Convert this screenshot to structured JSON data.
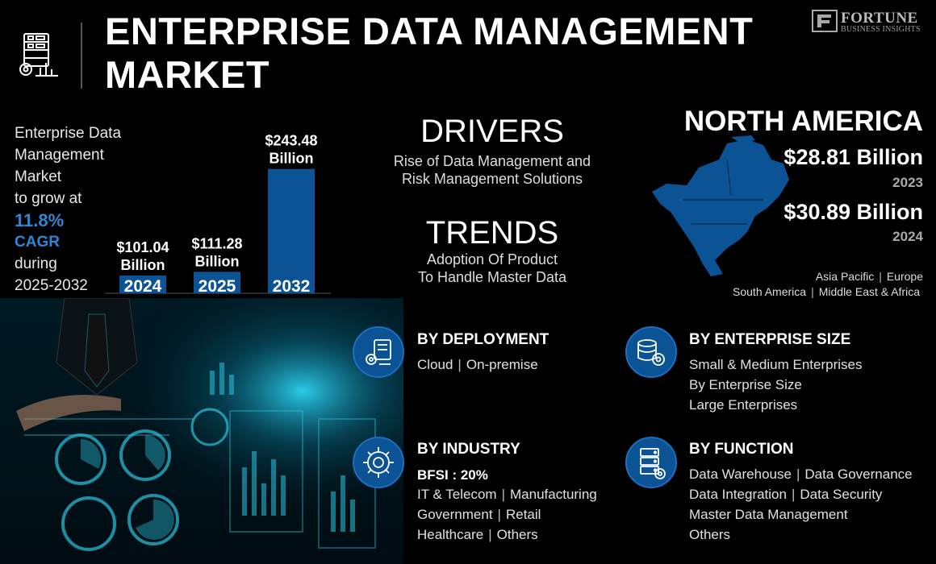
{
  "header": {
    "title": "ENTERPRISE DATA MANAGEMENT MARKET",
    "logo_word": "FORTUNE",
    "logo_sub": "BUSINESS INSIGHTS",
    "icon": "data-server-gear-icon"
  },
  "intro": {
    "line1": "Enterprise Data",
    "line2": "Management",
    "line3": "Market",
    "line4": "to grow at",
    "cagr_value": "11.8%",
    "cagr_label": "CAGR",
    "line5": "during",
    "period": "2025-2032"
  },
  "chart_data": {
    "type": "bar",
    "categories": [
      "2024",
      "2025",
      "2032"
    ],
    "values": [
      101.04,
      111.28,
      243.48
    ],
    "value_labels": [
      "$101.04",
      "$111.28",
      "$243.48"
    ],
    "unit_label": "Billion",
    "title": "",
    "xlabel": "",
    "ylabel": "",
    "ylim": [
      0,
      260
    ],
    "grid": false,
    "bar_color": "#0b5394"
  },
  "drivers": {
    "title": "DRIVERS",
    "line1": "Rise of Data Management and",
    "line2": "Risk Management Solutions"
  },
  "trends": {
    "title": "TRENDS",
    "line1": "Adoption Of Product",
    "line2": "To Handle Master Data"
  },
  "region": {
    "title": "NORTH AMERICA",
    "value_1": "$28.81 Billion",
    "year_1": "2023",
    "value_2": "$30.89 Billion",
    "year_2": "2024",
    "others": [
      "Asia Pacific",
      "Europe",
      "South America",
      "Middle East & Africa"
    ]
  },
  "segments": {
    "deployment": {
      "title": "BY DEPLOYMENT",
      "items": [
        "Cloud",
        "On-premise"
      ],
      "icon": "cloud-deployment-icon"
    },
    "enterprise_size": {
      "title": "BY ENTERPRISE SIZE",
      "lines": [
        "Small & Medium Enterprises",
        "By Enterprise Size",
        "Large Enterprises"
      ],
      "icon": "database-gear-icon"
    },
    "industry": {
      "title": "BY INDUSTRY",
      "highlight": "BFSI : 20%",
      "row1": [
        "IT & Telecom",
        "Manufacturing"
      ],
      "row2": [
        "Government",
        "Retail"
      ],
      "row3": [
        "Healthcare",
        "Others"
      ],
      "icon": "industry-gear-icon"
    },
    "function": {
      "title": "BY FUNCTION",
      "row1": [
        "Data Warehouse",
        "Data Governance"
      ],
      "row2": [
        "Data Integration",
        "Data Security"
      ],
      "row3": [
        "Master Data Management"
      ],
      "row4": [
        "Others"
      ],
      "icon": "server-rack-icon"
    }
  },
  "colors": {
    "accent": "#2f86d6",
    "bar": "#0b5394",
    "icon_ring": "#1c6fc0",
    "background": "#000000"
  }
}
